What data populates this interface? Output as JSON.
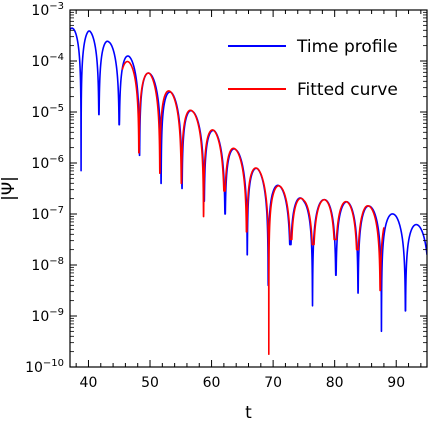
{
  "chart_data": {
    "type": "line",
    "xlabel": "t",
    "ylabel": "|Ψ|",
    "xlim": [
      37,
      95
    ],
    "ylim_log10": [
      -10,
      -3
    ],
    "yscale": "log",
    "x_ticks": [
      40,
      50,
      60,
      70,
      80,
      90
    ],
    "y_ticks": [
      {
        "base": "10",
        "exp": "−10",
        "value": -10
      },
      {
        "base": "10",
        "exp": "−9",
        "value": -9
      },
      {
        "base": "10",
        "exp": "−8",
        "value": -8
      },
      {
        "base": "10",
        "exp": "−7",
        "value": -7
      },
      {
        "base": "10",
        "exp": "−6",
        "value": -6
      },
      {
        "base": "10",
        "exp": "−5",
        "value": -5
      },
      {
        "base": "10",
        "exp": "−4",
        "value": -4
      },
      {
        "base": "10",
        "exp": "−3",
        "value": -3
      }
    ],
    "legend_position": "top-right",
    "series": [
      {
        "name": "Time profile",
        "color": "#0000ff",
        "t_range": [
          37,
          95
        ],
        "envelope_log10": [
          [
            37,
            -3.35
          ],
          [
            40,
            -3.4
          ],
          [
            43,
            -3.6
          ],
          [
            46,
            -3.85
          ],
          [
            50,
            -4.25
          ],
          [
            55,
            -4.78
          ],
          [
            60,
            -5.32
          ],
          [
            65,
            -5.85
          ],
          [
            70,
            -6.38
          ],
          [
            75,
            -6.72
          ],
          [
            80,
            -6.72
          ],
          [
            85,
            -6.82
          ],
          [
            90,
            -7.02
          ],
          [
            95,
            -7.3
          ]
        ],
        "zeros": [
          38.8,
          41.7,
          45.0,
          48.3,
          51.8,
          55.2,
          58.8,
          62.2,
          65.8,
          69.2,
          72.8,
          76.4,
          80.2,
          83.8,
          87.6,
          91.5
        ],
        "zero_depth_log10": [
          -6.15,
          -5.05,
          -5.25,
          -5.85,
          -6.4,
          -6.5,
          -6.75,
          -7.0,
          -7.8,
          -8.4,
          -7.6,
          -8.8,
          -8.2,
          -8.55,
          -9.3,
          -8.9
        ]
      },
      {
        "name": "Fitted curve",
        "color": "#ff0000",
        "t_range": [
          45.5,
          88
        ],
        "envelope_log10": [
          [
            45.5,
            -3.95
          ],
          [
            50,
            -4.25
          ],
          [
            55,
            -4.78
          ],
          [
            60,
            -5.32
          ],
          [
            65,
            -5.85
          ],
          [
            70,
            -6.38
          ],
          [
            75,
            -6.72
          ],
          [
            80,
            -6.72
          ],
          [
            85,
            -6.82
          ],
          [
            88,
            -6.95
          ]
        ],
        "zeros": [
          48.2,
          51.6,
          55.1,
          58.7,
          62.1,
          65.7,
          69.3,
          72.9,
          76.5,
          80.1,
          83.7,
          87.4
        ],
        "zero_depth_log10": [
          -5.8,
          -6.2,
          -6.4,
          -7.05,
          -6.55,
          -7.35,
          -9.75,
          -7.5,
          -7.6,
          -7.5,
          -7.7,
          -8.5
        ]
      }
    ]
  }
}
